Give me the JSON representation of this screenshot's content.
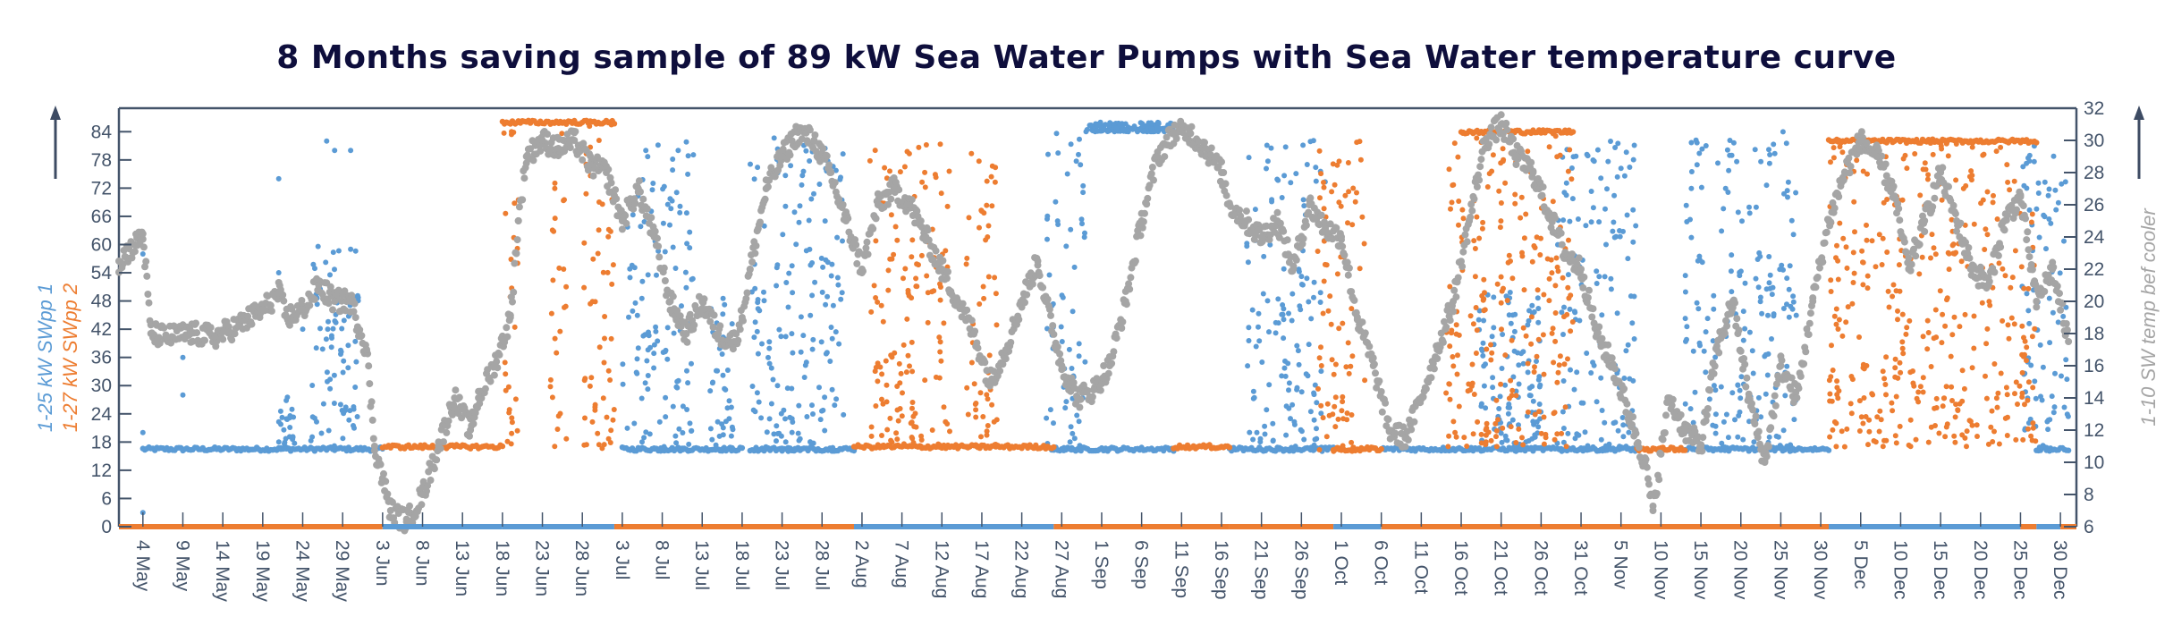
{
  "chart_data": {
    "type": "scatter",
    "title": "8 Months saving sample of 89 kW Sea Water Pumps with Sea Water temperature curve",
    "x_unit": "day",
    "x_start_label": "1 May",
    "xlim_days_from_1_May": [
      0,
      245
    ],
    "x_tick_labels": [
      "4 May",
      "9 May",
      "14 May",
      "19 May",
      "24 May",
      "29 May",
      "3 Jun",
      "8 Jun",
      "13 Jun",
      "18 Jun",
      "23 Jun",
      "28 Jun",
      "3 Jul",
      "8 Jul",
      "13 Jul",
      "18 Jul",
      "23 Jul",
      "28 Jul",
      "2 Aug",
      "7 Aug",
      "12 Aug",
      "17 Aug",
      "22 Aug",
      "27 Aug",
      "1 Sep",
      "6 Sep",
      "11 Sep",
      "16 Sep",
      "21 Sep",
      "26 Sep",
      "1 Oct",
      "6 Oct",
      "11 Oct",
      "16 Oct",
      "21 Oct",
      "26 Oct",
      "31 Oct",
      "5 Nov",
      "10 Nov",
      "15 Nov",
      "20 Nov",
      "25 Nov",
      "30 Nov",
      "5 Dec",
      "10 Dec",
      "15 Dec",
      "20 Dec",
      "25 Dec",
      "30 Dec"
    ],
    "x_tick_first_day": 3,
    "x_tick_step_days": 5,
    "y_left": {
      "label_1": "1-25 kW SWpp 1",
      "label_2": "1-27 kW SWpp 2",
      "ylim": [
        0,
        89
      ],
      "ticks": [
        "0",
        "6",
        "12",
        "18",
        "24",
        "30",
        "36",
        "42",
        "48",
        "54",
        "60",
        "66",
        "72",
        "78",
        "84"
      ]
    },
    "y_right": {
      "label": "1-10 SW temp bef cooler",
      "ylim": [
        6,
        32
      ],
      "ticks": [
        "6",
        "8",
        "10",
        "12",
        "14",
        "16",
        "18",
        "20",
        "22",
        "24",
        "26",
        "28",
        "30",
        "32"
      ]
    },
    "grid": false,
    "series": [
      {
        "name": "1-25 kW SWpp 1",
        "axis": "left",
        "color": "#5b9bd5",
        "segments": [
          {
            "from": 3,
            "to": 33,
            "base": 16.5,
            "spread": 0,
            "spikes": [
              [
                3,
                3
              ],
              [
                3,
                58
              ],
              [
                3,
                20
              ],
              [
                8,
                36
              ],
              [
                8,
                28
              ],
              [
                20,
                74
              ],
              [
                20,
                54
              ],
              [
                23,
                42
              ],
              [
                26,
                82
              ],
              [
                27,
                80
              ],
              [
                29,
                80
              ]
            ],
            "noisy": [
              [
                20,
                22,
                16,
                28
              ],
              [
                24,
                30,
                16,
                60
              ]
            ]
          },
          {
            "from": 63,
            "to": 78,
            "base": 16.5,
            "noisy": [
              [
                63,
                72,
                16,
                82
              ],
              [
                74,
                77,
                16,
                50
              ]
            ],
            "spikes": [
              [
                70,
                80
              ]
            ]
          },
          {
            "from": 79,
            "to": 92,
            "base": 16.5,
            "noisy": [
              [
                79,
                91,
                16,
                83
              ]
            ]
          },
          {
            "from": 117,
            "to": 132,
            "base": 16.5,
            "noisy": [
              [
                116,
                121,
                16,
                84
              ],
              [
                121,
                132,
                84,
                86
              ]
            ]
          },
          {
            "from": 139,
            "to": 152,
            "base": 16.5,
            "noisy": [
              [
                141,
                151,
                16,
                83
              ]
            ]
          },
          {
            "from": 158,
            "to": 190,
            "base": 16.5,
            "noisy": [
              [
                180,
                190,
                16,
                82
              ],
              [
                170,
                178,
                16,
                50
              ]
            ]
          },
          {
            "from": 196,
            "to": 214,
            "base": 16.5,
            "noisy": [
              [
                196,
                210,
                16,
                84
              ]
            ]
          },
          {
            "from": 240,
            "to": 244,
            "base": 16.5,
            "noisy": [
              [
                238,
                244,
                16,
                82
              ]
            ]
          }
        ]
      },
      {
        "name": "1-27 kW SWpp 2",
        "axis": "left",
        "color": "#ed7d31",
        "segments": [
          {
            "from": 33,
            "to": 48,
            "base": 17,
            "noisy": []
          },
          {
            "from": 48,
            "to": 62,
            "base": 86,
            "noisy": [
              [
                48,
                50,
                16,
                86
              ],
              [
                54,
                56,
                17,
                86
              ],
              [
                58,
                62,
                16,
                86
              ]
            ]
          },
          {
            "from": 92,
            "to": 117,
            "base": 17,
            "noisy": [
              [
                94,
                98,
                17,
                82
              ],
              [
                98,
                104,
                17,
                82
              ],
              [
                106,
                110,
                17,
                80
              ]
            ]
          },
          {
            "from": 132,
            "to": 139,
            "base": 17,
            "noisy": []
          },
          {
            "from": 152,
            "to": 158,
            "base": 16.5,
            "noisy": [
              [
                150,
                156,
                16,
                82
              ]
            ]
          },
          {
            "from": 168,
            "to": 182,
            "base": 84,
            "noisy": [
              [
                166,
                182,
                17,
                84
              ]
            ]
          },
          {
            "from": 190,
            "to": 196,
            "base": 16.5,
            "noisy": []
          },
          {
            "from": 214,
            "to": 240,
            "base": 82,
            "noisy": [
              [
                214,
                240,
                17,
                82
              ]
            ]
          }
        ]
      },
      {
        "name": "1-10 SW temp bef cooler",
        "axis": "right",
        "color": "#a5a5a5",
        "points": [
          [
            0,
            22.5
          ],
          [
            2,
            23.5
          ],
          [
            3,
            24.2
          ],
          [
            4,
            18
          ],
          [
            6,
            17.8
          ],
          [
            9,
            18
          ],
          [
            12,
            17.8
          ],
          [
            15,
            18.5
          ],
          [
            18,
            19.5
          ],
          [
            20,
            20.5
          ],
          [
            21,
            19
          ],
          [
            23,
            19.5
          ],
          [
            25,
            21
          ],
          [
            27,
            20
          ],
          [
            29,
            20
          ],
          [
            31,
            17
          ],
          [
            32,
            11
          ],
          [
            33,
            9
          ],
          [
            34,
            7
          ],
          [
            36,
            6.3
          ],
          [
            38,
            8
          ],
          [
            40,
            11
          ],
          [
            42,
            14
          ],
          [
            44,
            12
          ],
          [
            45,
            14
          ],
          [
            47,
            16
          ],
          [
            49,
            19
          ],
          [
            50,
            25
          ],
          [
            51,
            29
          ],
          [
            53,
            30
          ],
          [
            55,
            29.5
          ],
          [
            57,
            30
          ],
          [
            59,
            28.5
          ],
          [
            61,
            28
          ],
          [
            63,
            25
          ],
          [
            65,
            27
          ],
          [
            67,
            24
          ],
          [
            69,
            20
          ],
          [
            71,
            18
          ],
          [
            73,
            20
          ],
          [
            75,
            18
          ],
          [
            77,
            17.5
          ],
          [
            78,
            19
          ],
          [
            79,
            22
          ],
          [
            81,
            27
          ],
          [
            83,
            29
          ],
          [
            85,
            30.5
          ],
          [
            87,
            30
          ],
          [
            89,
            28
          ],
          [
            91,
            25
          ],
          [
            93,
            22
          ],
          [
            95,
            26
          ],
          [
            97,
            27
          ],
          [
            99,
            26
          ],
          [
            101,
            24
          ],
          [
            103,
            22
          ],
          [
            105,
            20
          ],
          [
            107,
            18
          ],
          [
            109,
            15
          ],
          [
            111,
            17
          ],
          [
            113,
            20
          ],
          [
            115,
            22.5
          ],
          [
            116,
            20
          ],
          [
            118,
            16
          ],
          [
            120,
            14
          ],
          [
            122,
            14.5
          ],
          [
            124,
            16
          ],
          [
            126,
            20
          ],
          [
            128,
            25
          ],
          [
            130,
            29
          ],
          [
            132,
            30.5
          ],
          [
            134,
            30.5
          ],
          [
            136,
            29.5
          ],
          [
            138,
            28
          ],
          [
            139,
            26
          ],
          [
            141,
            25
          ],
          [
            143,
            24
          ],
          [
            145,
            25
          ],
          [
            147,
            22
          ],
          [
            149,
            26
          ],
          [
            151,
            24.5
          ],
          [
            153,
            24
          ],
          [
            155,
            19
          ],
          [
            157,
            16
          ],
          [
            159,
            12
          ],
          [
            161,
            11.5
          ],
          [
            163,
            14
          ],
          [
            165,
            17
          ],
          [
            167,
            20
          ],
          [
            169,
            25
          ],
          [
            171,
            30
          ],
          [
            173,
            31
          ],
          [
            175,
            29
          ],
          [
            177,
            28
          ],
          [
            179,
            25.5
          ],
          [
            181,
            23
          ],
          [
            183,
            22
          ],
          [
            185,
            18
          ],
          [
            187,
            16
          ],
          [
            189,
            13
          ],
          [
            191,
            10
          ],
          [
            192,
            7
          ],
          [
            194,
            14
          ],
          [
            196,
            12
          ],
          [
            198,
            11
          ],
          [
            200,
            17
          ],
          [
            202,
            20
          ],
          [
            204,
            14
          ],
          [
            206,
            10
          ],
          [
            208,
            16
          ],
          [
            210,
            14
          ],
          [
            212,
            20
          ],
          [
            214,
            25
          ],
          [
            216,
            28
          ],
          [
            218,
            30
          ],
          [
            220,
            29
          ],
          [
            222,
            27
          ],
          [
            224,
            22
          ],
          [
            226,
            25
          ],
          [
            228,
            28
          ],
          [
            230,
            25
          ],
          [
            232,
            22
          ],
          [
            234,
            21
          ],
          [
            236,
            25
          ],
          [
            238,
            26.5
          ],
          [
            240,
            20
          ],
          [
            242,
            22
          ],
          [
            244,
            17.5
          ]
        ]
      }
    ]
  }
}
